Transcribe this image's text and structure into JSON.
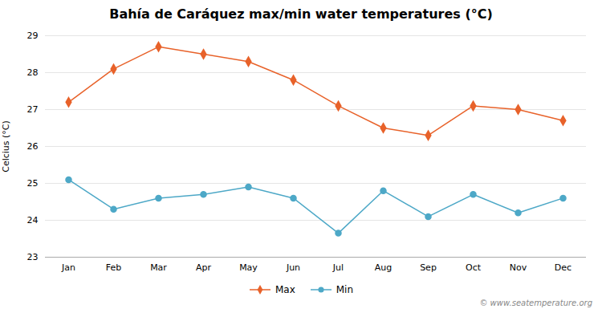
{
  "chart_data": {
    "type": "line",
    "title": "Bahía de Caráquez max/min water temperatures (°C)",
    "categories": [
      "Jan",
      "Feb",
      "Mar",
      "Apr",
      "May",
      "Jun",
      "Jul",
      "Aug",
      "Sep",
      "Oct",
      "Nov",
      "Dec"
    ],
    "series": [
      {
        "name": "Max",
        "color": "#e8622a",
        "marker": "diamond",
        "values": [
          27.2,
          28.1,
          28.7,
          28.5,
          28.3,
          27.8,
          27.1,
          26.5,
          26.3,
          27.1,
          27.0,
          26.7
        ]
      },
      {
        "name": "Min",
        "color": "#4da8c7",
        "marker": "circle",
        "values": [
          25.1,
          24.3,
          24.6,
          24.7,
          24.9,
          24.6,
          23.65,
          24.8,
          24.1,
          24.7,
          24.2,
          24.6
        ]
      }
    ],
    "ylabel": "Celcius (°C)",
    "ylim": [
      23,
      29
    ],
    "yticks": [
      23,
      24,
      25,
      26,
      27,
      28,
      29
    ],
    "grid": true,
    "legend": "bottom",
    "annotations": [
      "© www.seatemperature.org"
    ]
  }
}
